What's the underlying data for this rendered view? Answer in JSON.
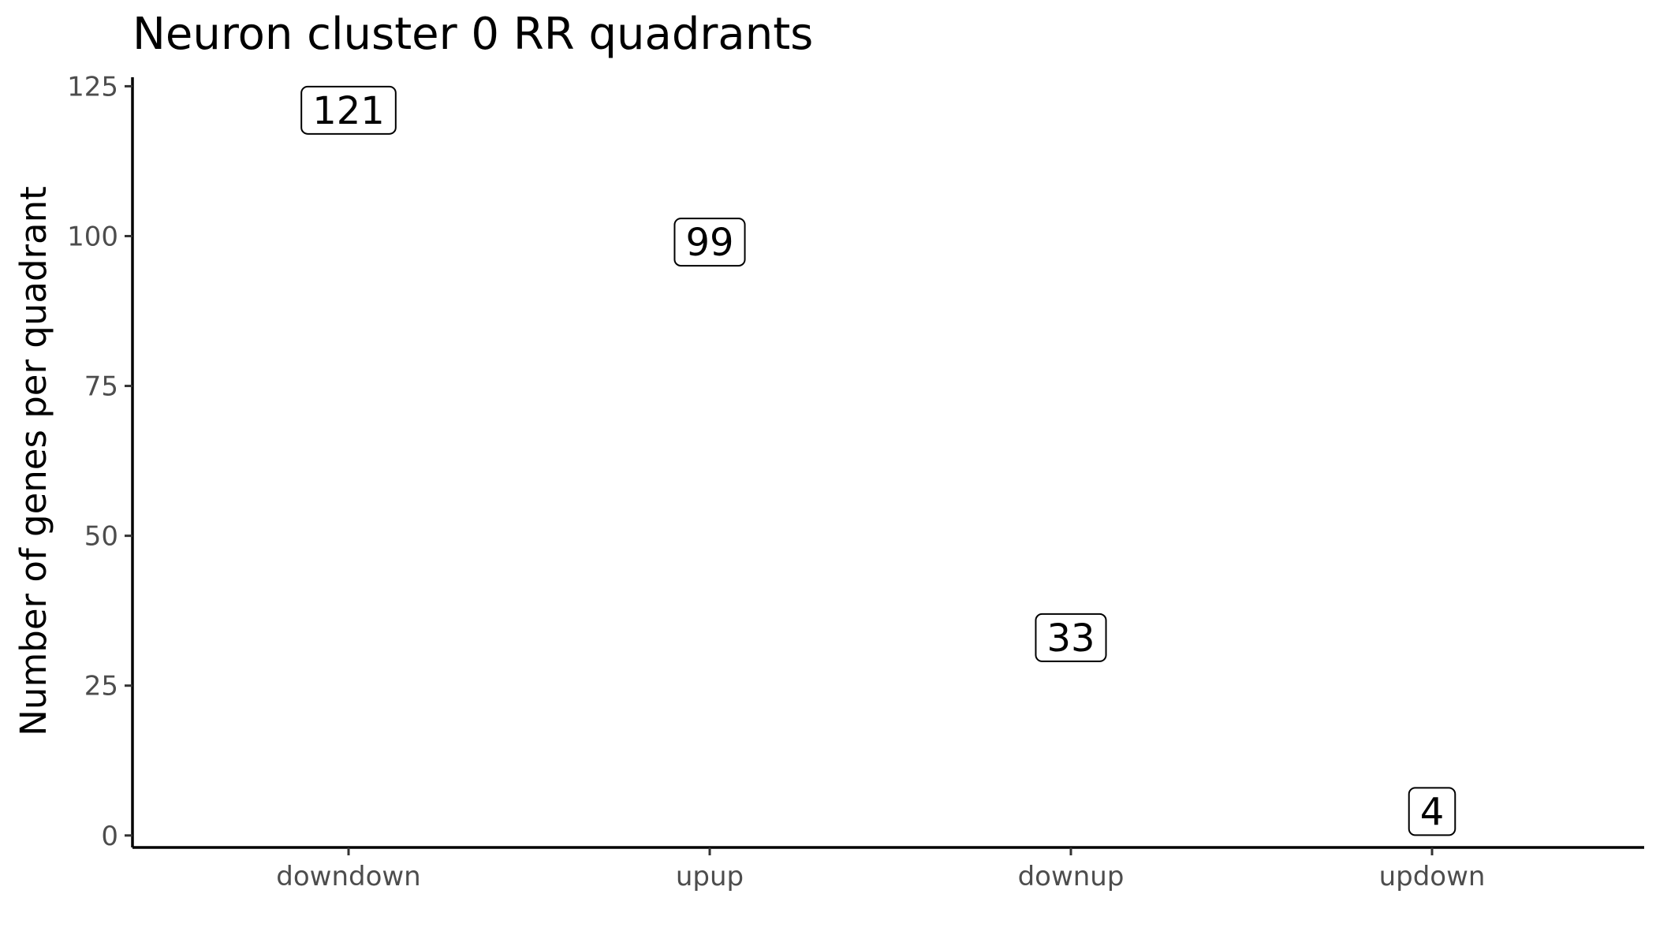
{
  "chart_data": {
    "type": "scatter",
    "title": "Neuron cluster 0 RR quadrants",
    "xlabel": "",
    "ylabel": "Number of genes per quadrant",
    "categories": [
      "downdown",
      "upup",
      "downup",
      "updown"
    ],
    "values": [
      121,
      99,
      33,
      4
    ],
    "data_labels": [
      "121",
      "99",
      "33",
      "4"
    ],
    "ylim": [
      -2,
      126.5
    ],
    "yticks": [
      0,
      25,
      50,
      75,
      100,
      125
    ],
    "ytick_labels": [
      "0",
      "25",
      "50",
      "75",
      "100",
      "125"
    ],
    "grid": false,
    "legend": "none",
    "mark_style": "labeled boxes"
  }
}
